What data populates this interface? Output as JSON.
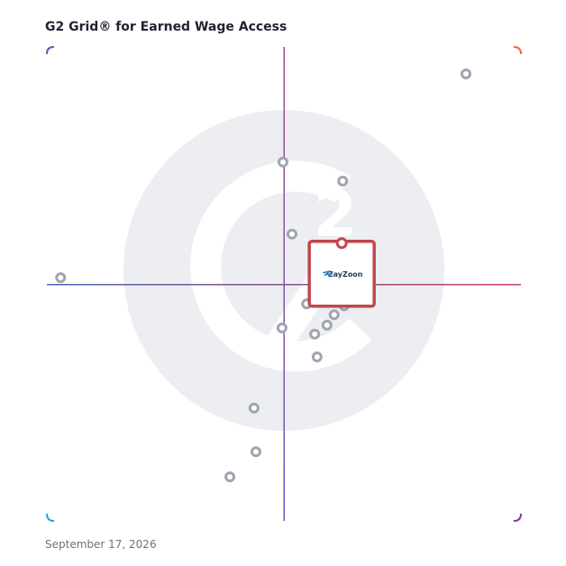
{
  "chart_data": {
    "type": "scatter",
    "title": "G2 Grid® for Earned Wage Access",
    "date": "September 17, 2026",
    "xlim": [
      0,
      100
    ],
    "ylim": [
      0,
      100
    ],
    "series": [
      {
        "color": "#a0a5b0",
        "x": [
          88.4,
          49.8,
          62.4,
          51.7,
          2.9,
          54.8,
          62.7,
          60.6,
          59.1,
          49.6,
          56.5,
          57.0,
          43.7,
          44.1,
          38.6
        ],
        "values": [
          94.3,
          75.7,
          71.7,
          60.5,
          51.3,
          45.8,
          45.4,
          43.5,
          41.3,
          40.7,
          39.4,
          34.6,
          23.8,
          14.6,
          9.3
        ]
      }
    ],
    "highlight": {
      "name": "ZayZoon",
      "color": "#c0474e",
      "x": 62.2,
      "y": 58.6
    }
  }
}
